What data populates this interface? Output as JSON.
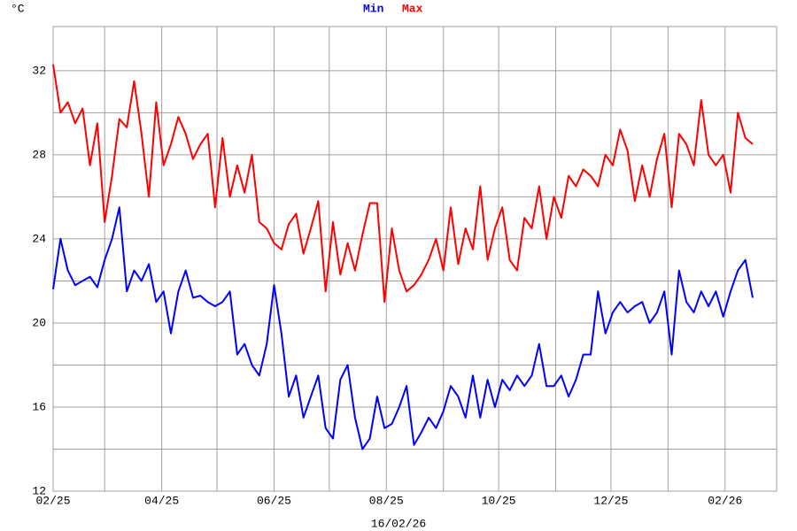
{
  "chart_data": {
    "type": "line",
    "unit_label": "°C",
    "x_label": "16/02/26",
    "x": [
      0,
      4,
      8,
      12,
      16,
      20,
      24,
      28,
      32,
      36,
      40,
      44,
      48,
      52,
      56,
      60,
      64,
      68,
      72,
      76,
      80,
      84,
      88,
      92,
      96,
      100,
      104,
      108,
      112,
      116,
      120,
      124,
      128,
      132,
      136,
      140,
      144,
      148,
      152,
      156,
      160,
      164,
      168,
      172,
      176,
      180,
      184,
      188,
      192,
      196,
      200,
      204,
      208,
      212,
      216,
      220,
      224,
      228,
      232,
      236,
      240,
      244,
      248,
      252,
      256,
      260,
      264,
      268,
      272,
      276,
      280,
      284,
      288,
      292,
      296,
      300,
      304,
      308,
      312,
      316,
      320,
      324,
      328,
      332,
      336,
      340,
      344,
      348,
      352,
      356,
      360,
      364,
      368,
      372,
      376,
      380
    ],
    "series": [
      {
        "name": "Min",
        "color": "#0000ff",
        "values": [
          21.6,
          24,
          22.5,
          21.8,
          22,
          22.2,
          21.7,
          23,
          24,
          25.5,
          21.5,
          22.5,
          22,
          22.8,
          21,
          21.5,
          19.5,
          21.5,
          22.5,
          21.2,
          21.3,
          21,
          20.8,
          21,
          21.5,
          18.5,
          19,
          18,
          17.5,
          19,
          21.8,
          19.5,
          16.5,
          17.5,
          15.5,
          16.5,
          17.5,
          15,
          14.5,
          17.3,
          18,
          15.5,
          14,
          14.5,
          16.5,
          15,
          15.2,
          16,
          17,
          14.2,
          14.8,
          15.5,
          15,
          15.8,
          17,
          16.5,
          15.5,
          17.5,
          15.5,
          17.3,
          16,
          17.3,
          16.8,
          17.5,
          17,
          17.5,
          19,
          17,
          17,
          17.5,
          16.5,
          17.3,
          18.5,
          18.5,
          21.5,
          19.5,
          20.5,
          21,
          20.5,
          20.8,
          21,
          20,
          20.5,
          21.5,
          18.5,
          22.5,
          21,
          20.5,
          21.5,
          20.8,
          21.5,
          20.3,
          21.5,
          22.5,
          23,
          21.2
        ]
      },
      {
        "name": "Max",
        "color": "#ff0000",
        "values": [
          32.3,
          30,
          30.5,
          29.5,
          30.2,
          27.5,
          29.5,
          24.8,
          27,
          29.7,
          29.3,
          31.5,
          29,
          26,
          30.5,
          27.5,
          28.5,
          29.8,
          29,
          27.8,
          28.5,
          29,
          25.5,
          28.8,
          26,
          27.5,
          26.2,
          28,
          24.8,
          24.5,
          23.8,
          23.5,
          24.7,
          25.2,
          23.3,
          24.5,
          25.8,
          21.5,
          24.8,
          22.3,
          23.8,
          22.5,
          24.2,
          25.7,
          25.7,
          21,
          24.5,
          22.5,
          21.5,
          21.8,
          22.3,
          23,
          24,
          22.5,
          25.5,
          22.8,
          24.5,
          23.5,
          26.5,
          23,
          24.5,
          25.5,
          23,
          22.5,
          25,
          24.5,
          26.5,
          24,
          26,
          25,
          27,
          26.5,
          27.3,
          27,
          26.5,
          28,
          27.5,
          29.2,
          28.2,
          25.8,
          27.5,
          26,
          27.8,
          29,
          25.5,
          29,
          28.5,
          27.5,
          30.6,
          28,
          27.5,
          28,
          26.2,
          30,
          28.8,
          28.5
        ]
      }
    ],
    "xlim": [
      0,
      393
    ],
    "xticks": [
      {
        "value": 0,
        "label": "02/25"
      },
      {
        "value": 59,
        "label": "04/25"
      },
      {
        "value": 120,
        "label": "06/25"
      },
      {
        "value": 181,
        "label": "08/25"
      },
      {
        "value": 242,
        "label": "10/25"
      },
      {
        "value": 303,
        "label": "12/25"
      },
      {
        "value": 365,
        "label": "02/26"
      }
    ],
    "minor_xticks": [
      28,
      89,
      150,
      212,
      273,
      334
    ],
    "ylim": [
      12,
      34.1
    ],
    "yticks": [
      12,
      16,
      20,
      24,
      28,
      32
    ],
    "minor_yticks": [
      14,
      18,
      22,
      26,
      30
    ],
    "grid": true
  }
}
